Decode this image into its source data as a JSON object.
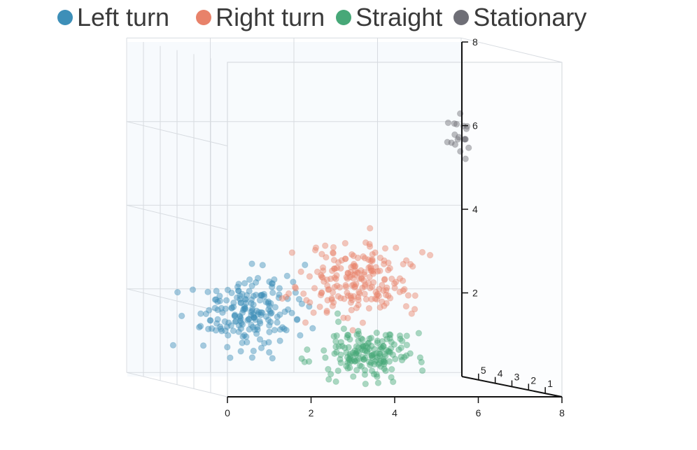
{
  "chart_data": {
    "type": "scatter",
    "title": "",
    "xlabel": "",
    "ylabel": "",
    "zlabel": "",
    "x_ticks": [
      "0",
      "2",
      "4",
      "6",
      "8"
    ],
    "y_ticks": [
      "2",
      "4",
      "6",
      "8"
    ],
    "z_ticks": [
      "1",
      "2",
      "3",
      "4",
      "5"
    ],
    "xlim": [
      0,
      8
    ],
    "ylim": [
      0,
      8
    ],
    "zlim": [
      0,
      6
    ],
    "grid": true,
    "legend_position": "top",
    "series": [
      {
        "name": "Left turn",
        "color": "#3d8fb8",
        "center": [
          -0.5,
          2.0,
          3.0
        ],
        "spread": [
          0.9,
          0.9,
          1.0
        ],
        "count": 190
      },
      {
        "name": "Right turn",
        "color": "#e8826a",
        "center": [
          2.0,
          2.8,
          3.0
        ],
        "spread": [
          1.0,
          0.8,
          1.0
        ],
        "count": 200
      },
      {
        "name": "Straight",
        "color": "#47a878",
        "center": [
          2.3,
          1.0,
          3.0
        ],
        "spread": [
          0.8,
          0.6,
          1.0
        ],
        "count": 170
      },
      {
        "name": "Stationary",
        "color": "#6e6e76",
        "center": [
          5.4,
          6.3,
          3.0
        ],
        "spread": [
          0.8,
          0.5,
          1.0
        ],
        "count": 170
      }
    ]
  }
}
